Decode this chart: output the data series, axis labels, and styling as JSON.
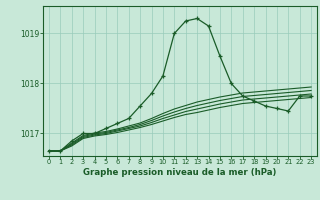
{
  "title": "Graphe pression niveau de la mer (hPa)",
  "bg_color": "#c8e8d8",
  "grid_color": "#99ccbb",
  "line_color": "#1a5c28",
  "x_ticks": [
    0,
    1,
    2,
    3,
    4,
    5,
    6,
    7,
    8,
    9,
    10,
    11,
    12,
    13,
    14,
    15,
    16,
    17,
    18,
    19,
    20,
    21,
    22,
    23
  ],
  "y_ticks": [
    1017,
    1018,
    1019
  ],
  "ylim": [
    1016.55,
    1019.55
  ],
  "xlim": [
    -0.5,
    23.5
  ],
  "main_line": [
    1016.65,
    1016.65,
    1016.85,
    1017.0,
    1017.0,
    1017.1,
    1017.2,
    1017.3,
    1017.55,
    1017.8,
    1018.15,
    1019.0,
    1019.25,
    1019.3,
    1019.15,
    1018.55,
    1018.0,
    1017.75,
    1017.65,
    1017.55,
    1017.5,
    1017.45,
    1017.75,
    1017.75
  ],
  "line2": [
    1016.65,
    1016.65,
    1016.75,
    1016.9,
    1016.95,
    1016.98,
    1017.02,
    1017.07,
    1017.12,
    1017.18,
    1017.25,
    1017.32,
    1017.38,
    1017.42,
    1017.47,
    1017.52,
    1017.56,
    1017.6,
    1017.62,
    1017.64,
    1017.66,
    1017.68,
    1017.7,
    1017.72
  ],
  "line3": [
    1016.65,
    1016.65,
    1016.77,
    1016.92,
    1016.97,
    1017.0,
    1017.05,
    1017.1,
    1017.15,
    1017.22,
    1017.3,
    1017.37,
    1017.44,
    1017.49,
    1017.54,
    1017.59,
    1017.63,
    1017.67,
    1017.69,
    1017.71,
    1017.73,
    1017.75,
    1017.77,
    1017.79
  ],
  "line4": [
    1016.65,
    1016.65,
    1016.79,
    1016.94,
    1016.99,
    1017.02,
    1017.07,
    1017.12,
    1017.18,
    1017.26,
    1017.35,
    1017.43,
    1017.5,
    1017.56,
    1017.61,
    1017.66,
    1017.7,
    1017.74,
    1017.76,
    1017.78,
    1017.8,
    1017.82,
    1017.84,
    1017.86
  ],
  "line5": [
    1016.65,
    1016.65,
    1016.81,
    1016.96,
    1017.01,
    1017.04,
    1017.09,
    1017.15,
    1017.21,
    1017.3,
    1017.4,
    1017.49,
    1017.56,
    1017.63,
    1017.68,
    1017.73,
    1017.77,
    1017.81,
    1017.83,
    1017.85,
    1017.87,
    1017.89,
    1017.91,
    1017.93
  ]
}
